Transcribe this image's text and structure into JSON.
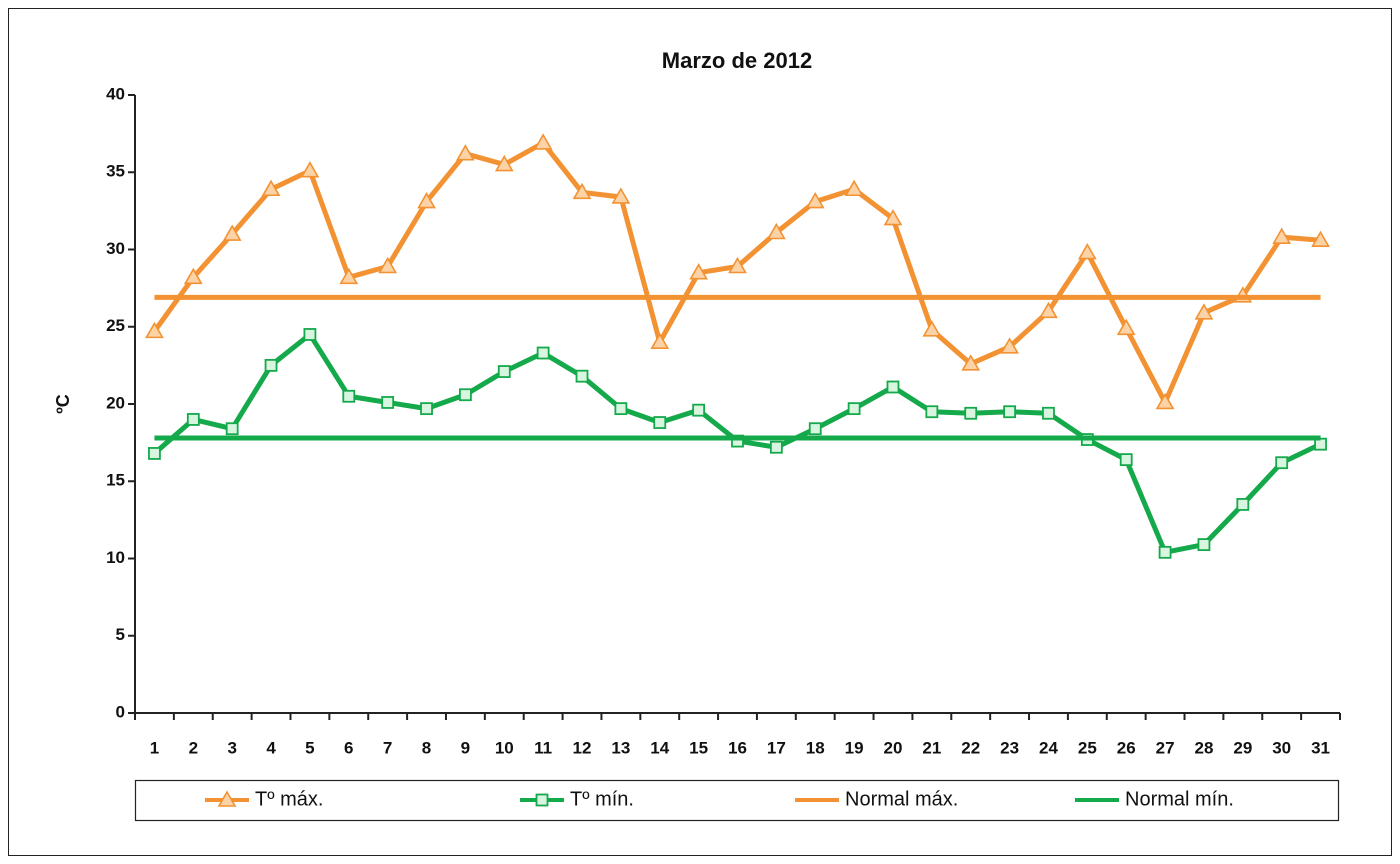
{
  "chart_data": {
    "type": "line",
    "title": "Marzo de 2012",
    "y_label": "ºC",
    "categories": [
      "1",
      "2",
      "3",
      "4",
      "5",
      "6",
      "7",
      "8",
      "9",
      "10",
      "11",
      "12",
      "13",
      "14",
      "15",
      "16",
      "17",
      "18",
      "19",
      "20",
      "21",
      "22",
      "23",
      "24",
      "25",
      "26",
      "27",
      "28",
      "29",
      "30",
      "31"
    ],
    "series": [
      {
        "name": "Tº máx.",
        "color": "#f39232",
        "marker": "triangle",
        "values": [
          24.7,
          28.2,
          31.0,
          33.9,
          35.1,
          28.2,
          28.9,
          33.1,
          36.2,
          35.5,
          36.9,
          33.7,
          33.4,
          24.0,
          28.5,
          28.9,
          31.1,
          33.1,
          33.9,
          32.0,
          24.8,
          22.6,
          23.7,
          26.0,
          29.8,
          24.9,
          20.1,
          25.9,
          27.0,
          30.8,
          30.6
        ]
      },
      {
        "name": "Tº mín.",
        "color": "#14a94b",
        "marker": "square",
        "values": [
          16.8,
          19.0,
          18.4,
          22.5,
          24.5,
          20.5,
          20.1,
          19.7,
          20.6,
          22.1,
          23.3,
          21.8,
          19.7,
          18.8,
          19.6,
          17.6,
          17.2,
          18.4,
          19.7,
          21.1,
          19.5,
          19.4,
          19.5,
          19.4,
          17.7,
          16.4,
          10.4,
          10.9,
          13.5,
          16.2,
          17.4
        ]
      },
      {
        "name": "Normal máx.",
        "color": "#f39232",
        "marker": null,
        "values": [
          26.9,
          26.9,
          26.9,
          26.9,
          26.9,
          26.9,
          26.9,
          26.9,
          26.9,
          26.9,
          26.9,
          26.9,
          26.9,
          26.9,
          26.9,
          26.9,
          26.9,
          26.9,
          26.9,
          26.9,
          26.9,
          26.9,
          26.9,
          26.9,
          26.9,
          26.9,
          26.9,
          26.9,
          26.9,
          26.9,
          26.9
        ]
      },
      {
        "name": "Normal mín.",
        "color": "#14a94b",
        "marker": null,
        "values": [
          17.8,
          17.8,
          17.8,
          17.8,
          17.8,
          17.8,
          17.8,
          17.8,
          17.8,
          17.8,
          17.8,
          17.8,
          17.8,
          17.8,
          17.8,
          17.8,
          17.8,
          17.8,
          17.8,
          17.8,
          17.8,
          17.8,
          17.8,
          17.8,
          17.8,
          17.8,
          17.8,
          17.8,
          17.8,
          17.8,
          17.8
        ]
      }
    ],
    "ylim": [
      0,
      40
    ],
    "yticks": [
      0,
      5,
      10,
      15,
      20,
      25,
      30,
      35,
      40
    ],
    "grid": false,
    "legend": "bottom"
  }
}
